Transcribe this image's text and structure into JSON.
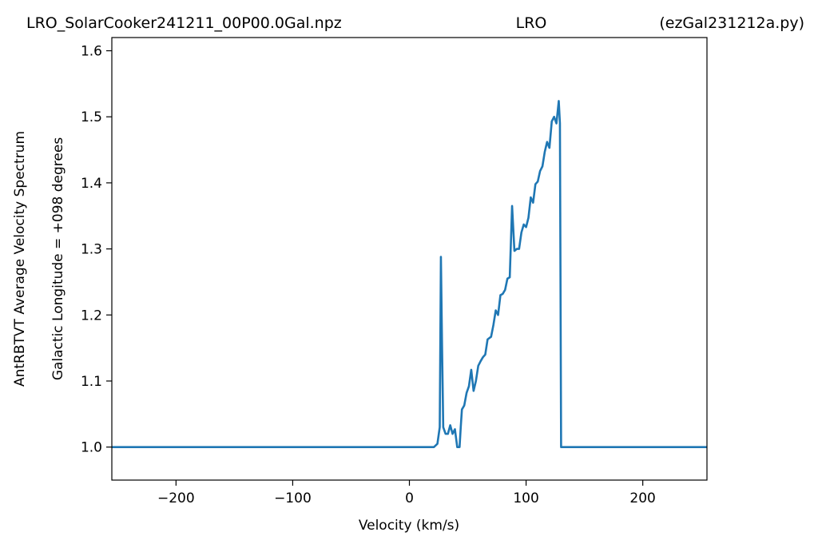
{
  "chart_data": {
    "type": "line",
    "title_left": "LRO_SolarCooker241211_00P00.0Gal.npz",
    "title_center": "LRO",
    "title_right": "(ezGal231212a.py)",
    "xlabel": "Velocity (km/s)",
    "ylabel_line1": "AntRBTVT Average Velocity Spectrum",
    "ylabel_line2": "Galactic Longitude = +098 degrees",
    "xlim": [
      -255,
      255
    ],
    "ylim": [
      0.95,
      1.62
    ],
    "xticks": [
      -200,
      -100,
      0,
      100,
      200
    ],
    "xtick_labels": [
      "−200",
      "−100",
      "0",
      "100",
      "200"
    ],
    "yticks": [
      1.0,
      1.1,
      1.2,
      1.3,
      1.4,
      1.5,
      1.6
    ],
    "ytick_labels": [
      "1.0",
      "1.1",
      "1.2",
      "1.3",
      "1.4",
      "1.5",
      "1.6"
    ],
    "grid": false,
    "series": [
      {
        "color": "#1f77b4",
        "points": [
          [
            -255,
            1.0
          ],
          [
            21,
            1.0
          ],
          [
            24,
            1.005
          ],
          [
            26,
            1.03
          ],
          [
            27,
            1.288
          ],
          [
            28,
            1.15
          ],
          [
            29,
            1.03
          ],
          [
            31,
            1.02
          ],
          [
            33,
            1.02
          ],
          [
            35,
            1.033
          ],
          [
            37,
            1.02
          ],
          [
            39,
            1.027
          ],
          [
            41,
            1.0
          ],
          [
            43,
            1.0
          ],
          [
            44,
            1.03
          ],
          [
            45,
            1.057
          ],
          [
            47,
            1.063
          ],
          [
            49,
            1.082
          ],
          [
            51,
            1.092
          ],
          [
            53,
            1.117
          ],
          [
            55,
            1.085
          ],
          [
            57,
            1.1
          ],
          [
            59,
            1.123
          ],
          [
            61,
            1.13
          ],
          [
            63,
            1.136
          ],
          [
            65,
            1.14
          ],
          [
            67,
            1.163
          ],
          [
            70,
            1.167
          ],
          [
            72,
            1.185
          ],
          [
            74,
            1.207
          ],
          [
            76,
            1.2
          ],
          [
            78,
            1.23
          ],
          [
            80,
            1.232
          ],
          [
            82,
            1.238
          ],
          [
            84,
            1.255
          ],
          [
            86,
            1.257
          ],
          [
            88,
            1.365
          ],
          [
            90,
            1.297
          ],
          [
            92,
            1.3
          ],
          [
            94,
            1.3
          ],
          [
            96,
            1.325
          ],
          [
            98,
            1.337
          ],
          [
            100,
            1.333
          ],
          [
            102,
            1.347
          ],
          [
            104,
            1.378
          ],
          [
            106,
            1.37
          ],
          [
            108,
            1.398
          ],
          [
            110,
            1.402
          ],
          [
            112,
            1.418
          ],
          [
            114,
            1.425
          ],
          [
            116,
            1.447
          ],
          [
            118,
            1.462
          ],
          [
            120,
            1.453
          ],
          [
            122,
            1.493
          ],
          [
            124,
            1.5
          ],
          [
            126,
            1.49
          ],
          [
            128,
            1.524
          ],
          [
            129,
            1.49
          ],
          [
            130,
            1.0
          ],
          [
            255,
            1.0
          ]
        ]
      }
    ]
  }
}
